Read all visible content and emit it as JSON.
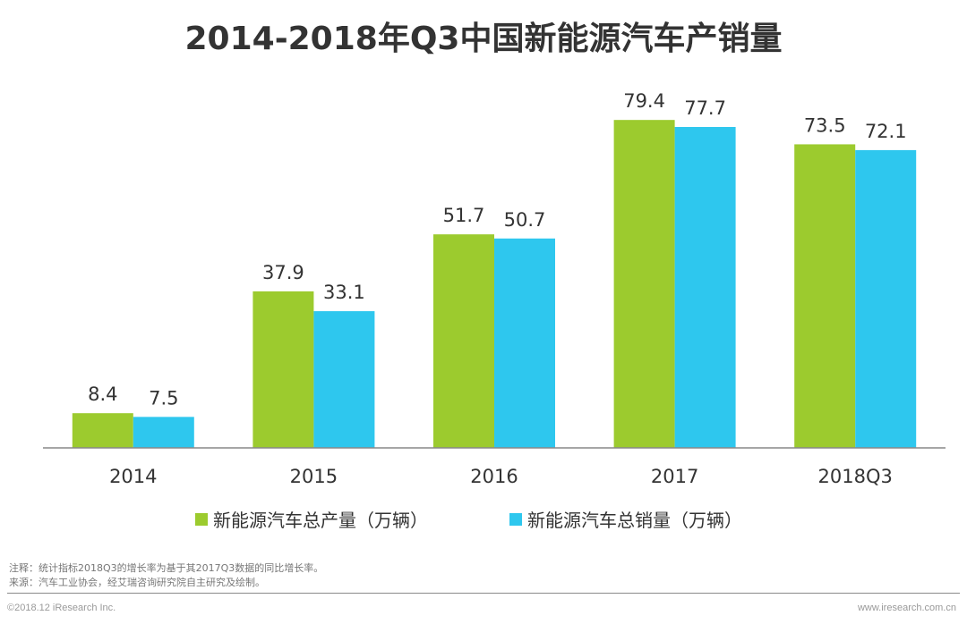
{
  "title": "2014-2018年Q3中国新能源汽车产销量",
  "colors": {
    "production": "#9ccb2e",
    "sales": "#2ec7ee",
    "axis": "#888888",
    "text": "#333333"
  },
  "chart_data": {
    "type": "bar",
    "title": "2014-2018年Q3中国新能源汽车产销量",
    "categories": [
      "2014",
      "2015",
      "2016",
      "2017",
      "2018Q3"
    ],
    "series": [
      {
        "name": "新能源汽车总产量（万辆）",
        "values": [
          8.4,
          37.9,
          51.7,
          79.4,
          73.5
        ]
      },
      {
        "name": "新能源汽车总销量（万辆）",
        "values": [
          7.5,
          33.1,
          50.7,
          77.7,
          72.1
        ]
      }
    ],
    "xlabel": "",
    "ylabel": "",
    "ylim": [
      0,
      100
    ],
    "grid": false,
    "legend": "bottom"
  },
  "legend": {
    "production": "新能源汽车总产量（万辆）",
    "sales": "新能源汽车总销量（万辆）"
  },
  "notes": {
    "note": "注释：统计指标2018Q3的增长率为基于其2017Q3数据的同比增长率。",
    "source": "来源：汽车工业协会，经艾瑞咨询研究院自主研究及绘制。"
  },
  "footer": {
    "copyright": "©2018.12 iResearch Inc.",
    "site": "www.iresearch.com.cn"
  }
}
